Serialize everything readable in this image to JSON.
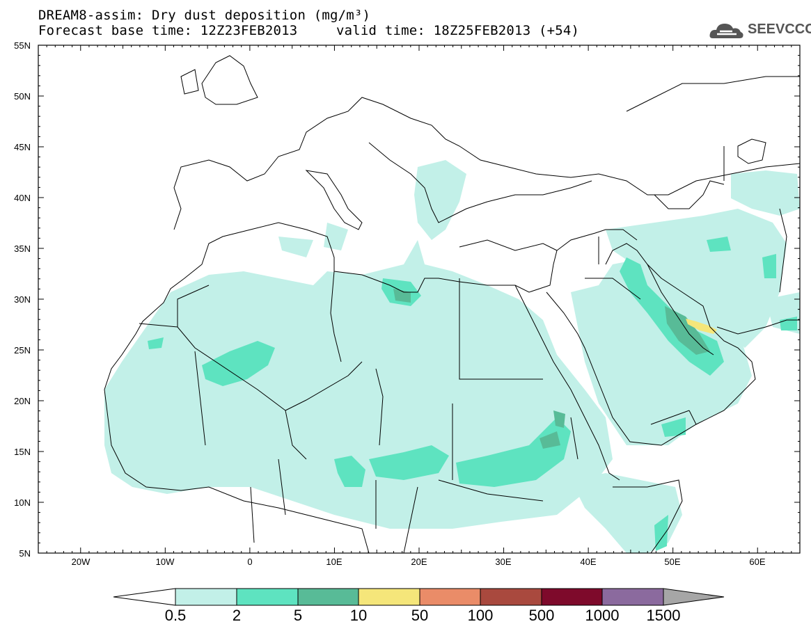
{
  "header": {
    "line1": "DREAM8-assim: Dry dust deposition (mg/m³)",
    "line2_base": "Forecast base time: 12Z23FEB2013",
    "line2_valid": "valid time: 18Z25FEB2013 (+54)"
  },
  "logo": {
    "text": "SEEVCCC",
    "icon": "cloud-logo-icon"
  },
  "axes": {
    "lon_labels": [
      "20W",
      "10W",
      "0",
      "10E",
      "20E",
      "30E",
      "40E",
      "50E",
      "60E"
    ],
    "lat_labels": [
      "55N",
      "50N",
      "45N",
      "40N",
      "35N",
      "30N",
      "25N",
      "20N",
      "15N",
      "10N",
      "5N"
    ]
  },
  "colorbar": {
    "labels": [
      "0.5",
      "2",
      "5",
      "10",
      "50",
      "100",
      "500",
      "1000",
      "1500"
    ],
    "colors": [
      "#c2f0e8",
      "#5ee3c0",
      "#58bb97",
      "#f5e67a",
      "#ea8c68",
      "#a9493e",
      "#7e0a2b",
      "#8b6a9e",
      "#a6a6a6"
    ]
  }
}
